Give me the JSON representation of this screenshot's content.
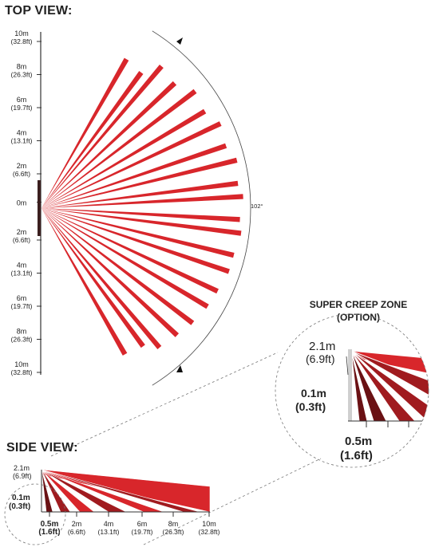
{
  "top_view": {
    "title": "TOP VIEW:",
    "angle_label": "102°",
    "scale_labels": [
      {
        "m": "10m",
        "ft": "(32.8ft)"
      },
      {
        "m": "8m",
        "ft": "(26.3ft)"
      },
      {
        "m": "6m",
        "ft": "(19.7ft)"
      },
      {
        "m": "4m",
        "ft": "(13.1ft)"
      },
      {
        "m": "2m",
        "ft": "(6.6ft)"
      },
      {
        "m": "0m",
        "ft": ""
      },
      {
        "m": "2m",
        "ft": "(6.6ft)"
      },
      {
        "m": "4m",
        "ft": "(13.1ft)"
      },
      {
        "m": "6m",
        "ft": "(19.7ft)"
      },
      {
        "m": "8m",
        "ft": "(26.3ft)"
      },
      {
        "m": "10m",
        "ft": "(32.8ft)"
      }
    ]
  },
  "super_creep": {
    "title_line1": "SUPER CREEP ZONE",
    "title_line2": "(OPTION)",
    "height_m": "2.1m",
    "height_ft": "(6.9ft)",
    "low_m": "0.1m",
    "low_ft": "(0.3ft)",
    "dist_m": "0.5m",
    "dist_ft": "(1.6ft)"
  },
  "side_view": {
    "title": "SIDE VIEW:",
    "height_m": "2.1m",
    "height_ft": "(6.9ft)",
    "low_m": "0.1m",
    "low_ft": "(0.3ft)",
    "x_labels": [
      {
        "m": "0.5m",
        "ft": "(1.6ft)"
      },
      {
        "m": "2m",
        "ft": "(6.6ft)"
      },
      {
        "m": "4m",
        "ft": "(13.1ft)"
      },
      {
        "m": "6m",
        "ft": "(19.7ft)"
      },
      {
        "m": "8m",
        "ft": "(26.3ft)"
      },
      {
        "m": "10m",
        "ft": "(32.8ft)"
      }
    ]
  },
  "colors": {
    "beam": "#d8262b",
    "beam_dark": "#a01b1f",
    "beam_deep": "#6a1114",
    "axis": "#333333",
    "dashed": "#777777"
  }
}
